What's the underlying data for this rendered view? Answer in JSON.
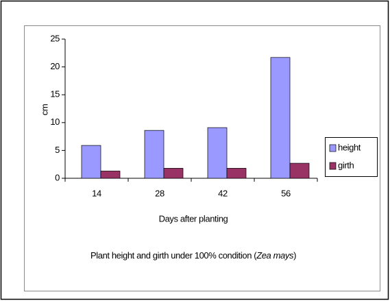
{
  "chart_data": {
    "type": "bar",
    "categories": [
      "14",
      "28",
      "42",
      "56"
    ],
    "series": [
      {
        "name": "height",
        "color": "#9999ff",
        "values": [
          5.9,
          8.6,
          9.1,
          21.7
        ]
      },
      {
        "name": "girth",
        "color": "#993366",
        "values": [
          1.3,
          1.8,
          1.8,
          2.7
        ]
      }
    ],
    "ylim": [
      0,
      25
    ],
    "yticks": [
      0,
      5,
      10,
      15,
      20,
      25
    ],
    "ylabel": "cm",
    "xlabel": "Days after planting",
    "caption": [
      "Plant height and girth under 100% condition (",
      "Zea mays",
      ")"
    ],
    "legend": "right"
  }
}
